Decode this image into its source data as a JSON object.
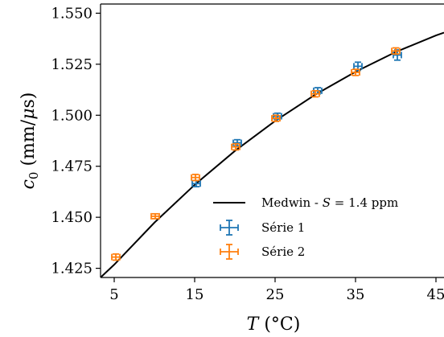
{
  "chart_data": {
    "type": "scatter",
    "xlabel": "T (°C)",
    "ylabel": "c0 (mm/μs)",
    "xlim": [
      3.3,
      46
    ],
    "ylim": [
      1.4205,
      1.5545
    ],
    "xticks": [
      5,
      15,
      25,
      35,
      45
    ],
    "xtick_labels": [
      "5",
      "15",
      "25",
      "35",
      "45"
    ],
    "yticks": [
      1.425,
      1.45,
      1.475,
      1.5,
      1.525,
      1.55
    ],
    "ytick_labels": [
      "1.425",
      "1.450",
      "1.475",
      "1.500",
      "1.525",
      "1.550"
    ],
    "grid": false,
    "legend_position": "lower-right",
    "legend": [
      {
        "label": "Medwin - S = 1.4 ppm",
        "kind": "line",
        "color": "#000000"
      },
      {
        "label": "Série 1",
        "kind": "errorbar",
        "color": "#1f77b4"
      },
      {
        "label": "Série 2",
        "kind": "errorbar",
        "color": "#ff7f0e"
      }
    ],
    "series": [
      {
        "name": "Série 1",
        "color": "#1f77b4",
        "points": [
          {
            "x": 15.2,
            "y": 1.4665,
            "yerr": 0.0015,
            "xerr": 0.5
          },
          {
            "x": 20.3,
            "y": 1.4865,
            "yerr": 0.0015,
            "xerr": 0.5
          },
          {
            "x": 25.3,
            "y": 1.4995,
            "yerr": 0.0015,
            "xerr": 0.5
          },
          {
            "x": 30.3,
            "y": 1.512,
            "yerr": 0.0015,
            "xerr": 0.5
          },
          {
            "x": 35.3,
            "y": 1.524,
            "yerr": 0.002,
            "xerr": 0.5
          },
          {
            "x": 40.2,
            "y": 1.5295,
            "yerr": 0.0025,
            "xerr": 0.5
          }
        ]
      },
      {
        "name": "Série 2",
        "color": "#ff7f0e",
        "points": [
          {
            "x": 5.2,
            "y": 1.4305,
            "yerr": 0.0015,
            "xerr": 0.5
          },
          {
            "x": 10.1,
            "y": 1.4505,
            "yerr": 0.0012,
            "xerr": 0.5
          },
          {
            "x": 15.1,
            "y": 1.4695,
            "yerr": 0.0015,
            "xerr": 0.5
          },
          {
            "x": 20.1,
            "y": 1.4845,
            "yerr": 0.0015,
            "xerr": 0.5
          },
          {
            "x": 25.1,
            "y": 1.4985,
            "yerr": 0.0015,
            "xerr": 0.5
          },
          {
            "x": 30.0,
            "y": 1.5105,
            "yerr": 0.0015,
            "xerr": 0.5
          },
          {
            "x": 35.0,
            "y": 1.521,
            "yerr": 0.0015,
            "xerr": 0.5
          },
          {
            "x": 40.0,
            "y": 1.5315,
            "yerr": 0.0015,
            "xerr": 0.5
          }
        ]
      },
      {
        "name": "Medwin - S = 1.4 ppm",
        "color": "#000000",
        "kind": "line",
        "x": [
          3.3,
          5,
          10,
          15,
          20,
          25,
          30,
          35,
          40,
          45,
          46
        ],
        "y": [
          1.4205,
          1.4268,
          1.4474,
          1.4659,
          1.4825,
          1.4972,
          1.5101,
          1.5213,
          1.531,
          1.5391,
          1.5405
        ]
      }
    ]
  }
}
